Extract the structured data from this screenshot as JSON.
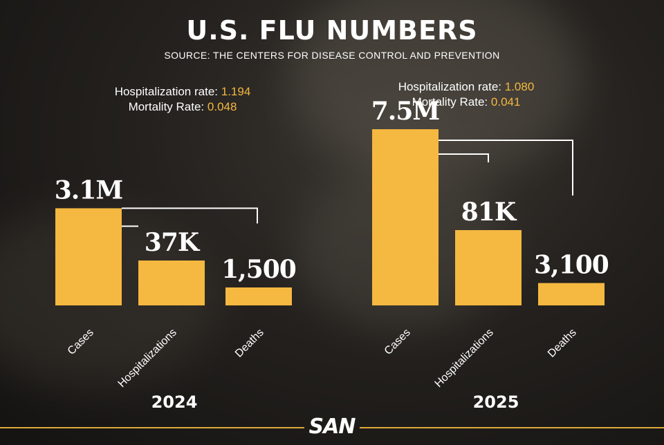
{
  "title": "U.S. FLU NUMBERS",
  "subtitle": "SOURCE: THE CENTERS FOR DISEASE CONTROL AND PREVENTION",
  "colors": {
    "bar": "#f5b840",
    "accent": "#f5b840",
    "connector": "#ffffff"
  },
  "rates_2024": {
    "hosp_label": "Hospitalization rate:",
    "hosp_value": "1.194",
    "mort_label": "Mortality Rate:",
    "mort_value": "0.048"
  },
  "rates_2025": {
    "hosp_label": "Hospitalization rate:",
    "hosp_value": "1.080",
    "mort_label": "Mortality Rate:",
    "mort_value": "0.041"
  },
  "logo": "SAN",
  "chart_data": [
    {
      "type": "bar",
      "title": "2024",
      "categories": [
        "Cases",
        "Hospitalizations",
        "Deaths"
      ],
      "values": [
        3100000,
        37000,
        1500
      ],
      "labels": [
        "3.1M",
        "37K",
        "1,500"
      ]
    },
    {
      "type": "bar",
      "title": "2025",
      "categories": [
        "Cases",
        "Hospitalizations",
        "Deaths"
      ],
      "values": [
        7500000,
        81000,
        3100
      ],
      "labels": [
        "7.5M",
        "81K",
        "3,100"
      ]
    }
  ]
}
